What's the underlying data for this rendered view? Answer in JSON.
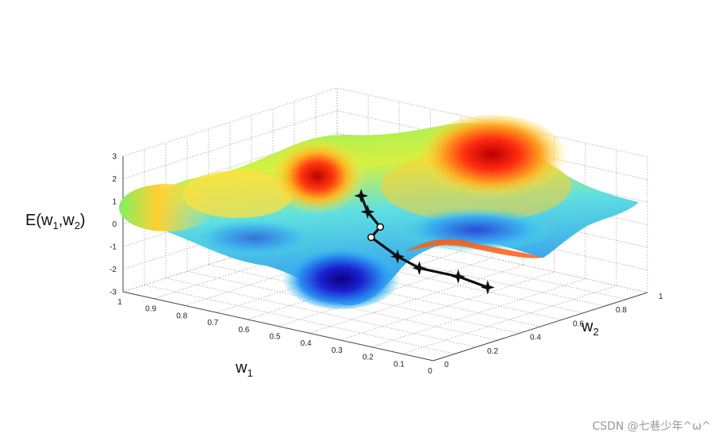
{
  "chart_data": {
    "type": "surface",
    "title": "",
    "zlabel": {
      "main": "E(w",
      "sub1": "1",
      "mid": ",w",
      "sub2": "2",
      "end": ")"
    },
    "xlabel": {
      "main": "w",
      "sub": "1"
    },
    "ylabel": {
      "main": "w",
      "sub": "2"
    },
    "zticks": [
      "3",
      "2",
      "1",
      "0",
      "-1",
      "-2",
      "-3"
    ],
    "w1_ticks": [
      "1",
      "0.9",
      "0.8",
      "0.7",
      "0.6",
      "0.5",
      "0.4",
      "0.3",
      "0.2",
      "0.1",
      "0"
    ],
    "w2_ticks": [
      "0",
      "0.2",
      "0.4",
      "0.6",
      "0.8",
      "1"
    ],
    "zlim": [
      -3,
      3
    ],
    "w1_range": [
      0,
      1
    ],
    "w2_range": [
      0,
      1
    ],
    "colormap": "jet",
    "grid": true,
    "descent_path": [
      {
        "w1": 0.46,
        "w2": 0.33,
        "E": 1.9
      },
      {
        "w1": 0.46,
        "w2": 0.36,
        "E": 1.1
      },
      {
        "w1": 0.44,
        "w2": 0.39,
        "E": 0.4
      },
      {
        "w1": 0.49,
        "w2": 0.42,
        "E": -0.3
      },
      {
        "w1": 0.46,
        "w2": 0.5,
        "E": -1.3
      },
      {
        "w1": 0.39,
        "w2": 0.5,
        "E": -1.6
      },
      {
        "w1": 0.32,
        "w2": 0.58,
        "E": -2.0
      },
      {
        "w1": 0.28,
        "w2": 0.66,
        "E": -2.6
      }
    ]
  },
  "watermark": "CSDN @七巷少年^ω^"
}
